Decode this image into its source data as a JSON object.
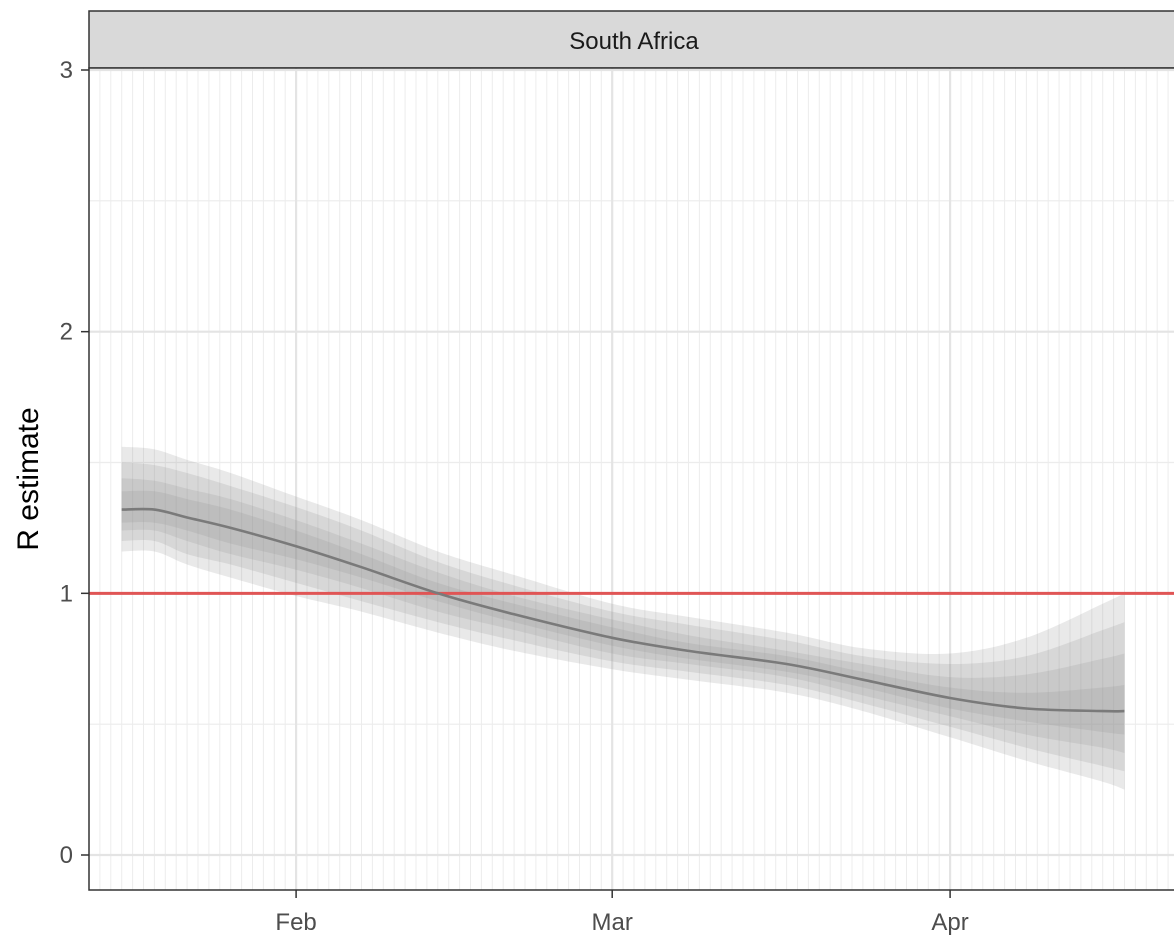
{
  "chart_data": {
    "type": "line",
    "facet_label": "South Africa",
    "title": "",
    "xlabel": "",
    "ylabel": "R estimate",
    "ylim": [
      0,
      3
    ],
    "xlim": [
      "2020-01-13",
      "2020-04-22"
    ],
    "x_ticks": [
      {
        "date": "2020-02-01",
        "label": "Feb"
      },
      {
        "date": "2020-03-01",
        "label": "Mar"
      },
      {
        "date": "2020-04-01",
        "label": "Apr"
      }
    ],
    "y_ticks": [
      0,
      1,
      2,
      3
    ],
    "minor_gridlines": "daily",
    "grid": true,
    "reference_line": {
      "y": 1,
      "color": "#e05555"
    },
    "series": [
      {
        "line_color": "#7a7a7a",
        "band_color": "#8f8f8f",
        "points": [
          {
            "x": "2020-01-16",
            "y": 1.32,
            "bands": [
              [
                1.16,
                1.56
              ],
              [
                1.2,
                1.5
              ],
              [
                1.24,
                1.44
              ],
              [
                1.27,
                1.39
              ]
            ]
          },
          {
            "x": "2020-01-19",
            "y": 1.32,
            "bands": [
              [
                1.16,
                1.55
              ],
              [
                1.2,
                1.49
              ],
              [
                1.24,
                1.43
              ],
              [
                1.27,
                1.39
              ]
            ]
          },
          {
            "x": "2020-01-22",
            "y": 1.29,
            "bands": [
              [
                1.11,
                1.51
              ],
              [
                1.15,
                1.46
              ],
              [
                1.2,
                1.4
              ],
              [
                1.24,
                1.36
              ]
            ]
          },
          {
            "x": "2020-01-26",
            "y": 1.25,
            "bands": [
              [
                1.06,
                1.46
              ],
              [
                1.11,
                1.41
              ],
              [
                1.15,
                1.36
              ],
              [
                1.19,
                1.32
              ]
            ]
          },
          {
            "x": "2020-02-01",
            "y": 1.18,
            "bands": [
              [
                0.99,
                1.37
              ],
              [
                1.04,
                1.33
              ],
              [
                1.09,
                1.28
              ],
              [
                1.13,
                1.24
              ]
            ]
          },
          {
            "x": "2020-02-07",
            "y": 1.1,
            "bands": [
              [
                0.93,
                1.28
              ],
              [
                0.97,
                1.24
              ],
              [
                1.02,
                1.19
              ],
              [
                1.06,
                1.15
              ]
            ]
          },
          {
            "x": "2020-02-14",
            "y": 1.0,
            "bands": [
              [
                0.85,
                1.16
              ],
              [
                0.89,
                1.12
              ],
              [
                0.93,
                1.08
              ],
              [
                0.97,
                1.04
              ]
            ]
          },
          {
            "x": "2020-02-21",
            "y": 0.92,
            "bands": [
              [
                0.78,
                1.07
              ],
              [
                0.82,
                1.03
              ],
              [
                0.86,
                0.99
              ],
              [
                0.89,
                0.96
              ]
            ]
          },
          {
            "x": "2020-03-01",
            "y": 0.83,
            "bands": [
              [
                0.71,
                0.96
              ],
              [
                0.74,
                0.93
              ],
              [
                0.77,
                0.9
              ],
              [
                0.8,
                0.87
              ]
            ]
          },
          {
            "x": "2020-03-08",
            "y": 0.78,
            "bands": [
              [
                0.67,
                0.91
              ],
              [
                0.7,
                0.88
              ],
              [
                0.73,
                0.84
              ],
              [
                0.75,
                0.81
              ]
            ]
          },
          {
            "x": "2020-03-17",
            "y": 0.73,
            "bands": [
              [
                0.62,
                0.85
              ],
              [
                0.65,
                0.82
              ],
              [
                0.68,
                0.78
              ],
              [
                0.7,
                0.76
              ]
            ]
          },
          {
            "x": "2020-03-24",
            "y": 0.67,
            "bands": [
              [
                0.55,
                0.79
              ],
              [
                0.58,
                0.76
              ],
              [
                0.61,
                0.73
              ],
              [
                0.64,
                0.7
              ]
            ]
          },
          {
            "x": "2020-04-01",
            "y": 0.6,
            "bands": [
              [
                0.45,
                0.77
              ],
              [
                0.49,
                0.73
              ],
              [
                0.53,
                0.68
              ],
              [
                0.56,
                0.64
              ]
            ]
          },
          {
            "x": "2020-04-08",
            "y": 0.56,
            "bands": [
              [
                0.36,
                0.83
              ],
              [
                0.41,
                0.76
              ],
              [
                0.46,
                0.69
              ],
              [
                0.51,
                0.62
              ]
            ]
          },
          {
            "x": "2020-04-15",
            "y": 0.55,
            "bands": [
              [
                0.28,
                0.96
              ],
              [
                0.34,
                0.86
              ],
              [
                0.41,
                0.75
              ],
              [
                0.47,
                0.64
              ]
            ]
          },
          {
            "x": "2020-04-17",
            "y": 0.55,
            "bands": [
              [
                0.25,
                1.0
              ],
              [
                0.32,
                0.89
              ],
              [
                0.39,
                0.77
              ],
              [
                0.46,
                0.65
              ]
            ]
          }
        ]
      }
    ]
  }
}
